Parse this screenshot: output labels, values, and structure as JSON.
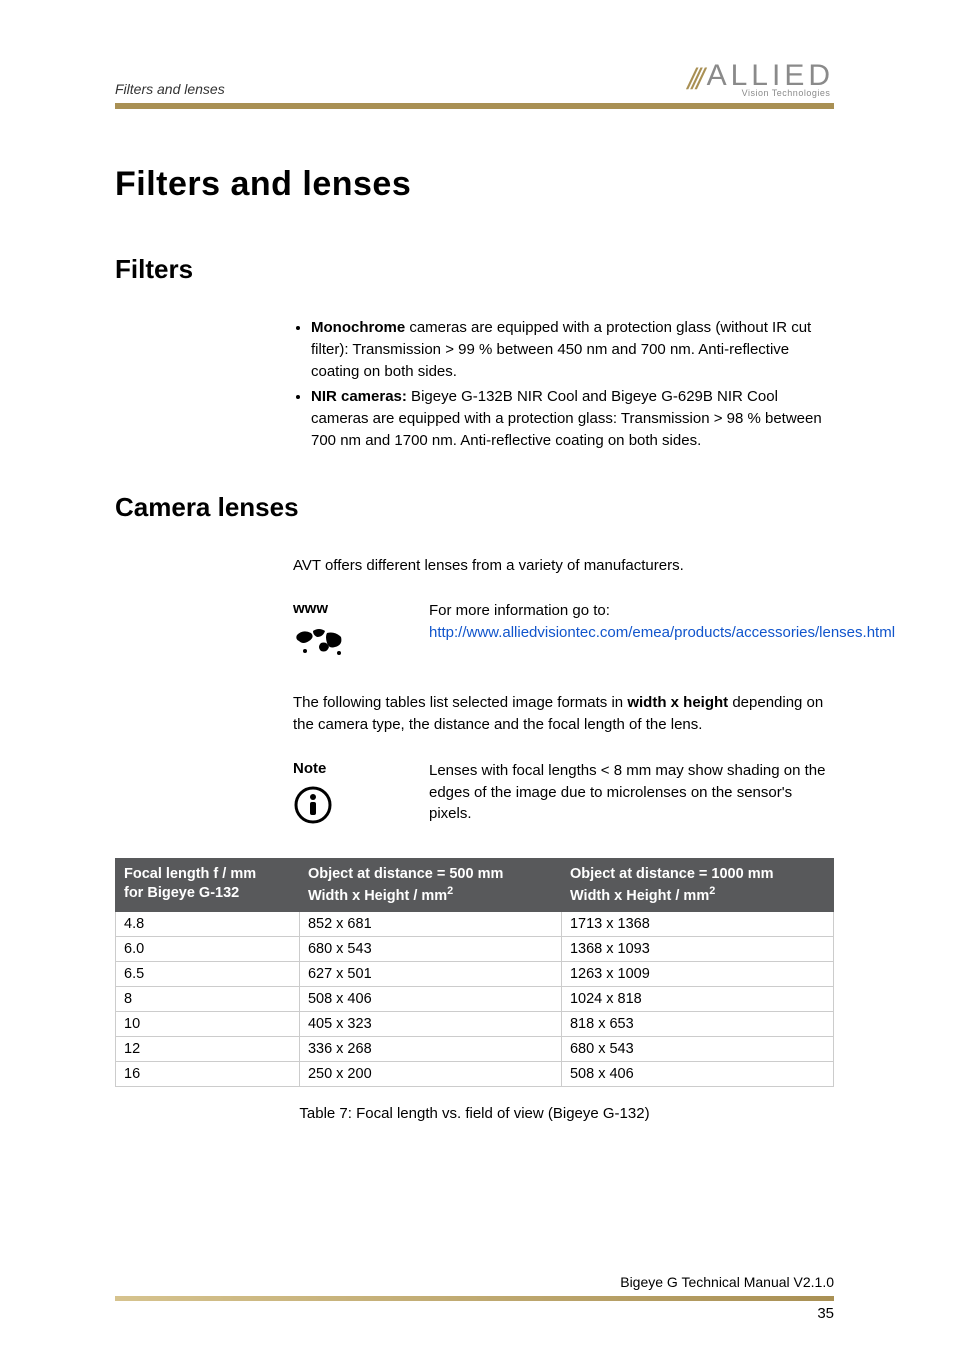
{
  "header": {
    "running_head": "Filters and lenses",
    "logo_main": "ALLIED",
    "logo_sub": "Vision Technologies"
  },
  "title": "Filters and lenses",
  "section_filters": {
    "heading": "Filters",
    "bullets": [
      {
        "lead": "Monochrome",
        "text": " cameras are equipped with a protection glass (without IR cut filter): Transmission > 99 % between 450 nm and 700 nm. Anti-reflective coating on both sides."
      },
      {
        "lead": "NIR cameras:",
        "text": " Bigeye G-132B NIR Cool and Bigeye G-629B NIR Cool cameras are equipped with a protection glass: Transmission > 98 % between 700 nm and 1700 nm. Anti-reflective coating on both sides."
      }
    ]
  },
  "section_lenses": {
    "heading": "Camera lenses",
    "intro": "AVT offers different lenses from a variety of manufacturers.",
    "www": {
      "label": "www",
      "line1": "For more information go to:",
      "link_text": "http://www.alliedvisiontec.com/emea/products/accessories/lenses.html",
      "link_href": "http://www.alliedvisiontec.com/emea/products/accessories/lenses.html"
    },
    "para2_pre": "The following tables list selected image formats in ",
    "para2_bold": "width x height",
    "para2_post": " depending on the camera type, the distance and the focal length of the lens.",
    "note": {
      "label": "Note",
      "text": "Lenses with focal lengths < 8 mm may show shading on the edges of the image due to microlenses on the sensor's pixels."
    }
  },
  "table": {
    "col1_line1": "Focal length f / mm",
    "col1_line2": "for Bigeye G-132",
    "col2_line1": "Object at distance = 500 mm",
    "col2_line2_pre": "Width x Height / mm",
    "col3_line1": "Object at distance = 1000 mm",
    "col3_line2_pre": "Width x Height / mm",
    "rows": [
      {
        "f": "4.8",
        "d500": "852 x 681",
        "d1000": "1713 x 1368"
      },
      {
        "f": "6.0",
        "d500": "680 x 543",
        "d1000": "1368 x 1093"
      },
      {
        "f": "6.5",
        "d500": "627 x 501",
        "d1000": "1263 x 1009"
      },
      {
        "f": "8",
        "d500": "508 x 406",
        "d1000": "1024 x 818"
      },
      {
        "f": "10",
        "d500": "405 x 323",
        "d1000": "818 x 653"
      },
      {
        "f": "12",
        "d500": "336 x 268",
        "d1000": "680 x 543"
      },
      {
        "f": "16",
        "d500": "250 x 200",
        "d1000": "508 x 406"
      }
    ],
    "caption": "Table 7: Focal length vs. field of view (Bigeye G-132)"
  },
  "footer": {
    "manual": "Bigeye G Technical Manual V2.1.0",
    "page": "35"
  },
  "colors": {
    "accent": "#A99054",
    "table_header_bg": "#58595B",
    "link": "#1155cc"
  }
}
